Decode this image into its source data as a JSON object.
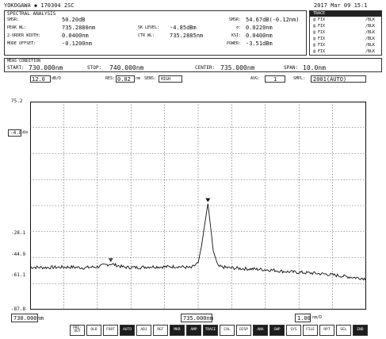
{
  "header": {
    "brand": "YOKOGAWA ◆ 170304 2SC",
    "datetime": "2017 Mar 09 15:1"
  },
  "analysis": {
    "title": "SPECTRAL ANALYSIS",
    "left": [
      {
        "label": "SMSR:",
        "value": "50.20dB"
      },
      {
        "label": "PEAK WL:",
        "value": "735.2880nm"
      },
      {
        "label": "2-ORDER WIDTH:",
        "value": "0.0400nm"
      },
      {
        "label": "MODE OFFSET:",
        "value": "-0.1200nm"
      }
    ],
    "mid": [
      {
        "label": "SK LEVEL:",
        "value": "-4.85dBm"
      },
      {
        "label": "CTR WL:",
        "value": "735.2885nm"
      }
    ],
    "right": [
      {
        "label": "SMSR:",
        "value": "54.67dB(-0.12nm)"
      },
      {
        "label": "σ:",
        "value": "0.0220nm"
      },
      {
        "label": "KSI:",
        "value": "0.0400nm"
      },
      {
        "label": "POWER:",
        "value": "-3.51dBm"
      }
    ]
  },
  "traces": {
    "title": "TRACE",
    "rows": [
      {
        "name": "@ FIX",
        "state": "/BLK"
      },
      {
        "name": "@ FIX",
        "state": "/BLK"
      },
      {
        "name": "@ FIX",
        "state": "/BLK"
      },
      {
        "name": "@ FIX",
        "state": "/BLK"
      },
      {
        "name": "@ FIX",
        "state": "/BLK"
      },
      {
        "name": "@ FIX",
        "state": "/BLK"
      }
    ]
  },
  "sweep": {
    "title": "MEAS CONDITION",
    "start": {
      "label": "START:",
      "value": "730.000nm"
    },
    "stop": {
      "label": "STOP:",
      "value": "740.000nm"
    },
    "center": {
      "label": "CENTER:",
      "value": "735.000nm"
    },
    "span": {
      "label": "SPAN:",
      "value": "10.0nm"
    }
  },
  "status": {
    "scale": "12.0",
    "scale_unit": "dB/D",
    "res_label": "RES:",
    "res_value": "0.02",
    "res_unit": "nm",
    "sens_label": "SENS:",
    "sens_value": "HIGH",
    "avg_label": "AVG:",
    "avg_value": "1",
    "smpl_label": "SMPL:",
    "smpl_value": "2001(AUTO)"
  },
  "plot": {
    "ref_marker": "-4.8",
    "ref_unit": "dBm"
  },
  "bottom": {
    "start": "730.000nm",
    "center": "735.000nm",
    "div": "1.00",
    "div_unit": "nm/D",
    "buttons": [
      {
        "label": "PRE-OUT",
        "dark": false
      },
      {
        "label": "OLD",
        "dark": false
      },
      {
        "label": "FOOT",
        "dark": false
      },
      {
        "label": "AUTO",
        "dark": true
      },
      {
        "label": "ADJ",
        "dark": false
      },
      {
        "label": "REF",
        "dark": false
      },
      {
        "label": "MKR",
        "dark": true
      },
      {
        "label": "AMP",
        "dark": true
      },
      {
        "label": "TRACE",
        "dark": true
      },
      {
        "label": "CAL",
        "dark": false
      },
      {
        "label": "DISP",
        "dark": false
      },
      {
        "label": "ANA",
        "dark": true
      },
      {
        "label": "SWP",
        "dark": true
      },
      {
        "label": "SYS",
        "dark": false
      },
      {
        "label": "FILE",
        "dark": false
      },
      {
        "label": "RPT",
        "dark": false
      },
      {
        "label": "SEL",
        "dark": false
      },
      {
        "label": "END",
        "dark": true
      }
    ]
  },
  "chart_data": {
    "type": "line",
    "title": "",
    "xlabel": "",
    "ylabel": "",
    "xlim": [
      730.0,
      740.0
    ],
    "ylim": [
      -87.8,
      75.2
    ],
    "y_ticks": [
      75.2,
      -4.8,
      -28.1,
      -44.9,
      -61.1,
      -87.8
    ],
    "y_tick_labels": [
      "75.2",
      "-4.8",
      "-28.1",
      "-44.9",
      "-61.1",
      "-87.8"
    ],
    "grid": true,
    "series": [
      {
        "name": "",
        "x": [
          730.0,
          730.4,
          730.8,
          731.2,
          731.6,
          732.0,
          732.4,
          732.8,
          733.2,
          733.6,
          734.0,
          734.4,
          734.8,
          735.0,
          735.1,
          735.2,
          735.29,
          735.35,
          735.45,
          735.6,
          735.9,
          736.3,
          736.8,
          737.2,
          737.6,
          738.0,
          738.4,
          738.8,
          739.2,
          739.6,
          740.0
        ],
        "y": [
          -54.5,
          -54.8,
          -54.6,
          -54.4,
          -55.0,
          -54.2,
          -51.9,
          -54.6,
          -54.8,
          -54.1,
          -54.3,
          -54.0,
          -55.1,
          -51.0,
          -38.0,
          -20.0,
          -4.8,
          -18.0,
          -42.0,
          -54.0,
          -55.0,
          -55.6,
          -56.2,
          -56.8,
          -58.0,
          -58.6,
          -59.2,
          -60.0,
          -61.2,
          -62.5,
          -63.5
        ]
      }
    ]
  }
}
